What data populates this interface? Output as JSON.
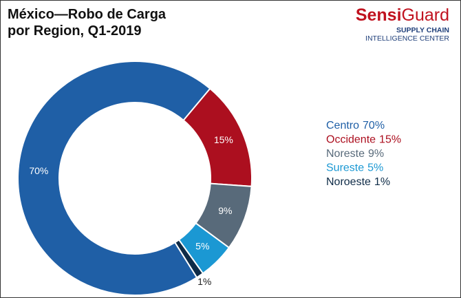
{
  "logo": {
    "brand_1": "Sensi",
    "brand_2": "Guard",
    "line_1": "SUPPLY CHAIN",
    "line_2": "INTELLIGENCE CENTER"
  },
  "chart_data": {
    "type": "pie",
    "donut": true,
    "title": "México—Robo de Carga por Region, Q1-2019",
    "categories": [
      "Centro",
      "Occidente",
      "Noreste",
      "Sureste",
      "Noroeste"
    ],
    "values": [
      70,
      15,
      9,
      5,
      1
    ],
    "value_labels": [
      "70%",
      "15%",
      "9%",
      "5%",
      "1%"
    ],
    "colors": [
      "#1f5fa6",
      "#ac0f1f",
      "#586a7a",
      "#1b98d3",
      "#0e2b47"
    ],
    "legend": "right"
  }
}
